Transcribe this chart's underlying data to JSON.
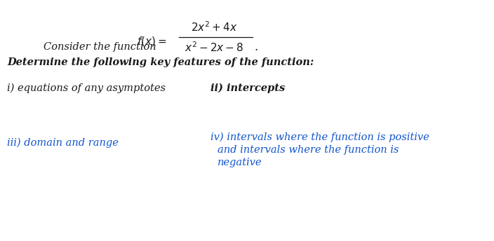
{
  "background_color": "#ffffff",
  "fig_width": 7.04,
  "fig_height": 3.44,
  "dpi": 100,
  "black": "#1a1a1a",
  "blue": "#1c4587",
  "red_brown": "#8b0000",
  "intro_line1": "Consider the function",
  "intro_line2": "Determine the following key features of the function:",
  "item_i": "i) equations of any asymptotes",
  "item_ii": "ii) intercepts",
  "item_iii": "iii) domain and range",
  "item_iv1": "iv) intervals where the function is positive",
  "item_iv2": "and intervals where the function is",
  "item_iv3": "negative",
  "fs": 10.5,
  "fs_formula": 10.5
}
